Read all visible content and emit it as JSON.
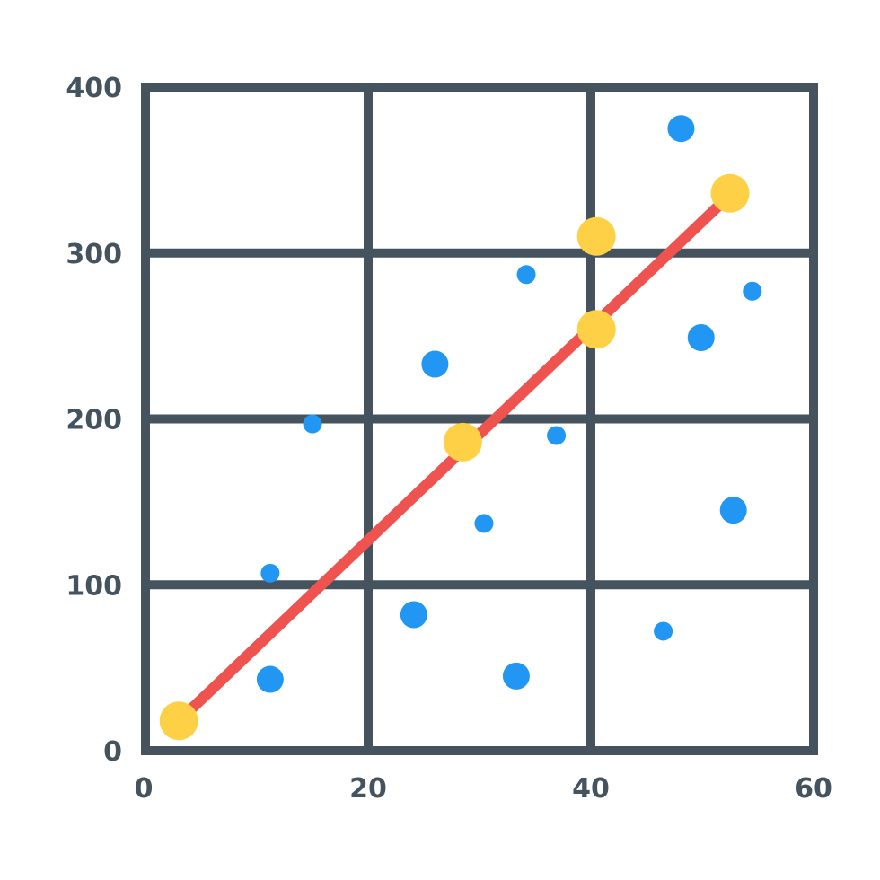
{
  "colors": {
    "frame": "#44535e",
    "scatter": "#2196f3",
    "trend_line": "#ef5350",
    "highlight": "#fdd046",
    "background": "#ffffff"
  },
  "chart_data": {
    "type": "scatter",
    "xlim": [
      0,
      60
    ],
    "ylim": [
      0,
      400
    ],
    "x_ticks": [
      "0",
      "20",
      "40",
      "60"
    ],
    "y_ticks": [
      "0",
      "100",
      "200",
      "300",
      "400"
    ],
    "grid": true,
    "legend": "none",
    "series": [
      {
        "kind": "scatter",
        "color": "#2196f3",
        "points": [
          {
            "x": 11.2,
            "y": 107,
            "r": "small"
          },
          {
            "x": 15.0,
            "y": 197,
            "r": "small"
          },
          {
            "x": 11.2,
            "y": 43,
            "r": "large"
          },
          {
            "x": 26.0,
            "y": 233,
            "r": "large"
          },
          {
            "x": 24.1,
            "y": 82,
            "r": "large"
          },
          {
            "x": 30.4,
            "y": 137,
            "r": "small"
          },
          {
            "x": 33.3,
            "y": 45,
            "r": "large"
          },
          {
            "x": 34.2,
            "y": 287,
            "r": "small"
          },
          {
            "x": 36.9,
            "y": 190,
            "r": "small"
          },
          {
            "x": 46.5,
            "y": 72,
            "r": "small"
          },
          {
            "x": 48.1,
            "y": 375,
            "r": "large"
          },
          {
            "x": 49.9,
            "y": 249,
            "r": "large"
          },
          {
            "x": 52.8,
            "y": 145,
            "r": "large"
          },
          {
            "x": 54.5,
            "y": 277,
            "r": "small"
          }
        ]
      },
      {
        "kind": "line",
        "color": "#ef5350",
        "points": [
          {
            "x": 3.0,
            "y": 18
          },
          {
            "x": 52.5,
            "y": 335
          }
        ]
      },
      {
        "kind": "highlight",
        "color": "#fdd046",
        "points": [
          {
            "x": 3.0,
            "y": 18
          },
          {
            "x": 28.5,
            "y": 186
          },
          {
            "x": 40.5,
            "y": 254
          },
          {
            "x": 40.5,
            "y": 310
          },
          {
            "x": 52.5,
            "y": 336
          }
        ]
      }
    ]
  }
}
